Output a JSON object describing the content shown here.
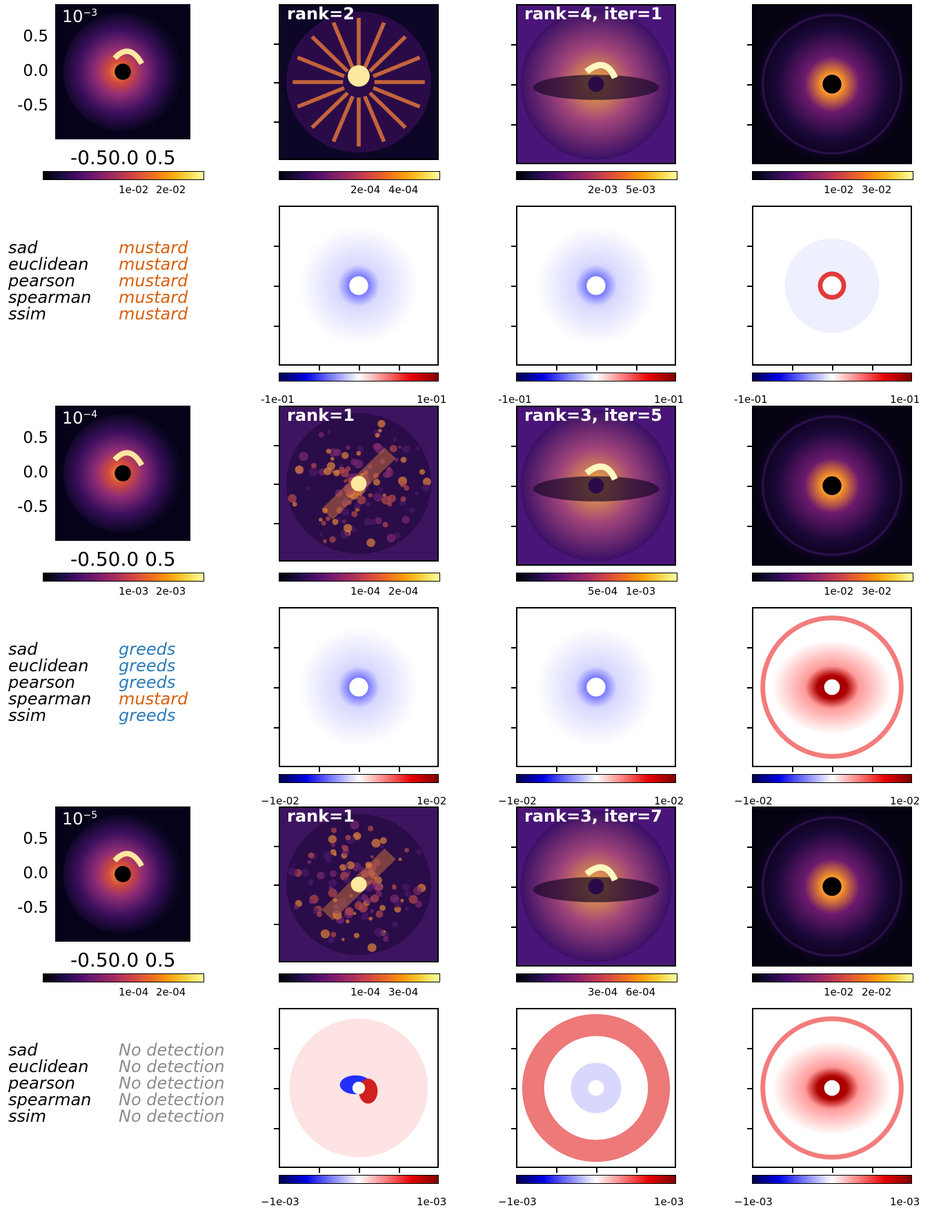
{
  "colors": {
    "mustard": "#d95f0e",
    "greeds": "#2b7bb9",
    "none": "#8c8c8c",
    "cmap_main": "inferno",
    "cmap_residual": "seismic"
  },
  "rows": [
    {
      "level": {
        "base": "10",
        "exp": "−3"
      },
      "yticks": [
        "0.5",
        "0.0",
        "-0.5"
      ],
      "xticks": "-0.50.0 0.5",
      "image_cbar_ticks": [
        {
          "labels": [
            "1e-02",
            "2e-02"
          ]
        },
        {
          "title": "rank=2",
          "labels": [
            "2e-04",
            "4e-04"
          ]
        },
        {
          "title": "rank=4, iter=1",
          "labels": [
            "2e-03",
            "5e-03"
          ]
        },
        {
          "labels": [
            "1e-02",
            "3e-02"
          ]
        }
      ],
      "residual_cbar": {
        "min": "-1e-01",
        "max": "1e-01"
      },
      "metrics": [
        {
          "name": "sad",
          "winner": "mustard",
          "color": "mustard"
        },
        {
          "name": "euclidean",
          "winner": "mustard",
          "color": "mustard"
        },
        {
          "name": "pearson",
          "winner": "mustard",
          "color": "mustard"
        },
        {
          "name": "spearman",
          "winner": "mustard",
          "color": "mustard"
        },
        {
          "name": "ssim",
          "winner": "mustard",
          "color": "mustard"
        }
      ]
    },
    {
      "level": {
        "base": "10",
        "exp": "−4"
      },
      "yticks": [
        "0.5",
        "0.0",
        "-0.5"
      ],
      "xticks": "-0.50.0 0.5",
      "image_cbar_ticks": [
        {
          "labels": [
            "1e-03",
            "2e-03"
          ]
        },
        {
          "title": "rank=1",
          "labels": [
            "1e-04",
            "2e-04"
          ]
        },
        {
          "title": "rank=3, iter=5",
          "labels": [
            "5e-04",
            "1e-03"
          ]
        },
        {
          "labels": [
            "1e-02",
            "3e-02"
          ]
        }
      ],
      "residual_cbar": {
        "min": "−1e-02",
        "max": "1e-02"
      },
      "metrics": [
        {
          "name": "sad",
          "winner": "greeds",
          "color": "greeds"
        },
        {
          "name": "euclidean",
          "winner": "greeds",
          "color": "greeds"
        },
        {
          "name": "pearson",
          "winner": "greeds",
          "color": "greeds"
        },
        {
          "name": "spearman",
          "winner": "mustard",
          "color": "mustard"
        },
        {
          "name": "ssim",
          "winner": "greeds",
          "color": "greeds"
        }
      ]
    },
    {
      "level": {
        "base": "10",
        "exp": "−5"
      },
      "yticks": [
        "0.5",
        "0.0",
        "-0.5"
      ],
      "xticks": "-0.50.0 0.5",
      "image_cbar_ticks": [
        {
          "labels": [
            "1e-04",
            "2e-04"
          ]
        },
        {
          "title": "rank=1",
          "labels": [
            "1e-04",
            "3e-04"
          ]
        },
        {
          "title": "rank=3, iter=7",
          "labels": [
            "3e-04",
            "6e-04"
          ]
        },
        {
          "labels": [
            "1e-02",
            "2e-02"
          ]
        }
      ],
      "residual_cbar": {
        "min": "−1e-03",
        "max": "1e-03"
      },
      "metrics": [
        {
          "name": "sad",
          "winner": "No detection",
          "color": "none"
        },
        {
          "name": "euclidean",
          "winner": "No detection",
          "color": "none"
        },
        {
          "name": "pearson",
          "winner": "No detection",
          "color": "none"
        },
        {
          "name": "spearman",
          "winner": "No detection",
          "color": "none"
        },
        {
          "name": "ssim",
          "winner": "No detection",
          "color": "none"
        }
      ]
    }
  ]
}
